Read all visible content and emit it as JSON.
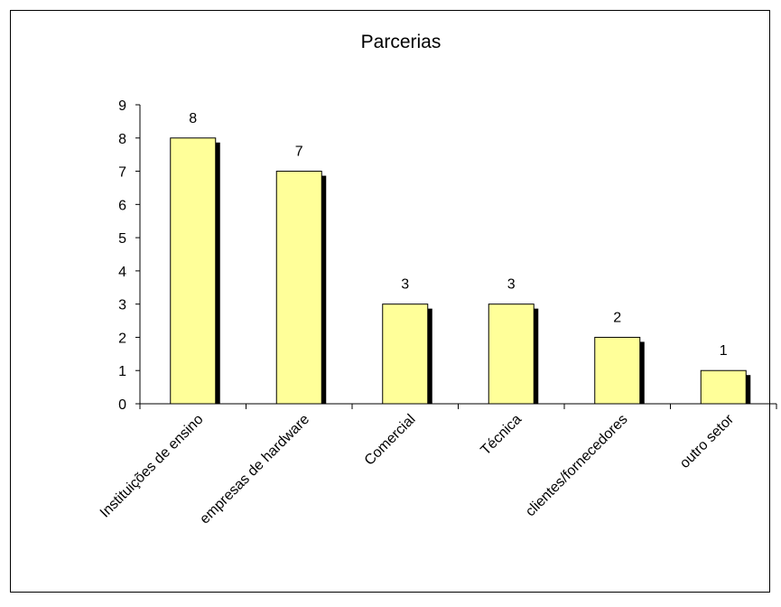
{
  "chart_data": {
    "type": "bar",
    "title": "Parcerias",
    "xlabel": "",
    "ylabel": "",
    "categories": [
      "Instituições de ensino",
      "empresas de hardware",
      "Comercial",
      "Técnica",
      "clientes/fornecedores",
      "outro setor"
    ],
    "values": [
      8,
      7,
      3,
      3,
      2,
      1
    ],
    "ylim": [
      0,
      9
    ],
    "yticks": [
      "0",
      "1",
      "2",
      "3",
      "4",
      "5",
      "6",
      "7",
      "8",
      "9"
    ],
    "data_labels": [
      "8",
      "7",
      "3",
      "3",
      "2",
      "1"
    ],
    "grid": false,
    "legend": "none",
    "colors": {
      "bar_fill": "#ffff99",
      "bar_stroke": "#000000",
      "bar_shadow": "#000000",
      "axis": "#000000",
      "frame": "#000000"
    }
  }
}
